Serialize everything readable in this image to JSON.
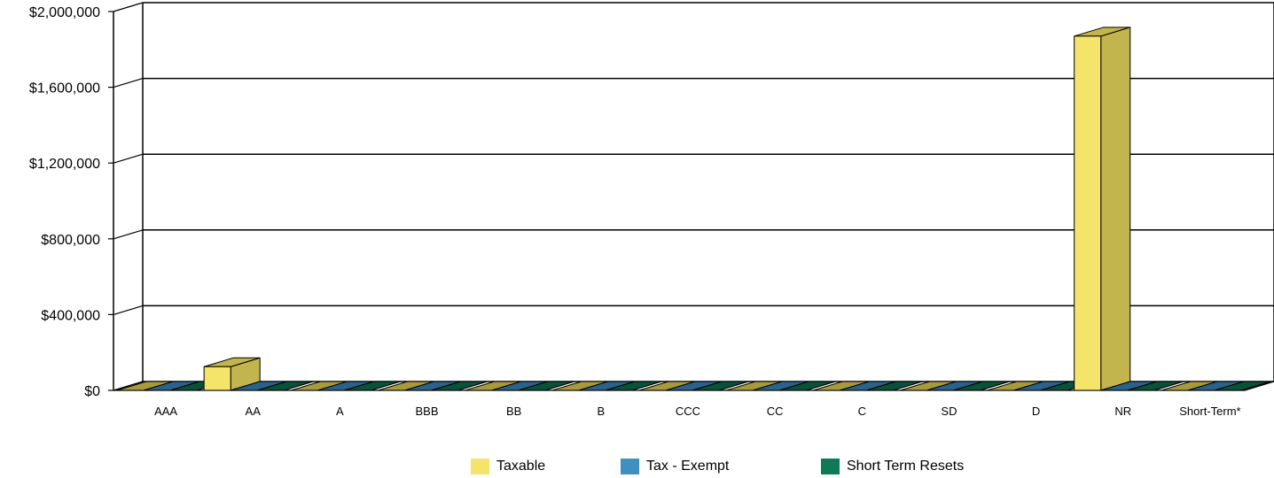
{
  "chart_data": {
    "type": "bar",
    "style": "3d-clustered",
    "categories": [
      "AAA",
      "AA",
      "A",
      "BBB",
      "BB",
      "B",
      "CCC",
      "CC",
      "C",
      "SD",
      "D",
      "NR",
      "Short-Term*"
    ],
    "series": [
      {
        "name": "Taxable",
        "color": "#f5e46a",
        "side_color": "#c2b54e",
        "top_color": "#a79a3c",
        "values": [
          0,
          125000,
          0,
          0,
          0,
          0,
          0,
          0,
          0,
          0,
          0,
          1870000,
          0
        ]
      },
      {
        "name": "Tax - Exempt",
        "color": "#3f8fc0",
        "side_color": "#2f6f97",
        "top_color": "#2a6289",
        "values": [
          0,
          0,
          0,
          0,
          0,
          0,
          0,
          0,
          0,
          0,
          0,
          0,
          0
        ]
      },
      {
        "name": "Short Term Resets",
        "color": "#0f7a55",
        "side_color": "#0b5e42",
        "top_color": "#0a5139",
        "values": [
          0,
          0,
          0,
          0,
          0,
          0,
          0,
          0,
          0,
          0,
          0,
          0,
          0
        ]
      }
    ],
    "y_ticks": [
      "$0",
      "$400,000",
      "$800,000",
      "$1,200,000",
      "$1,600,000",
      "$2,000,000"
    ],
    "ylim": [
      0,
      2000000
    ],
    "grid": true,
    "legend_position": "bottom"
  },
  "legend": {
    "items": [
      {
        "label": "Taxable",
        "color": "#f5e46a"
      },
      {
        "label": "Tax - Exempt",
        "color": "#3f8fc0"
      },
      {
        "label": "Short Term Resets",
        "color": "#0f7a55"
      }
    ]
  }
}
